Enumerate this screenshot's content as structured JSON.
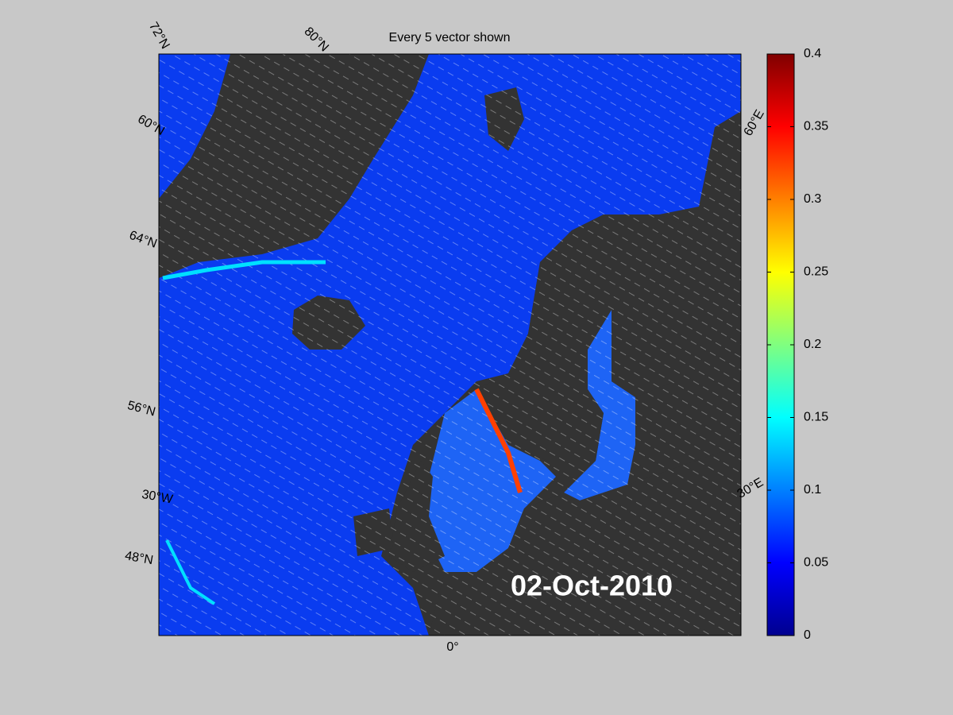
{
  "title": "Every 5 vector shown",
  "date_label": "02-Oct-2010",
  "graticule_labels": [
    "72°N",
    "80°N",
    "60°N",
    "64°N",
    "56°N",
    "30°W",
    "48°N",
    "0°",
    "30°E",
    "60°E"
  ],
  "colorbar": {
    "lim": [
      0,
      0.4
    ],
    "ticks": [
      0,
      0.05,
      0.1,
      0.15,
      0.2,
      0.25,
      0.3,
      0.35,
      0.4
    ]
  }
}
